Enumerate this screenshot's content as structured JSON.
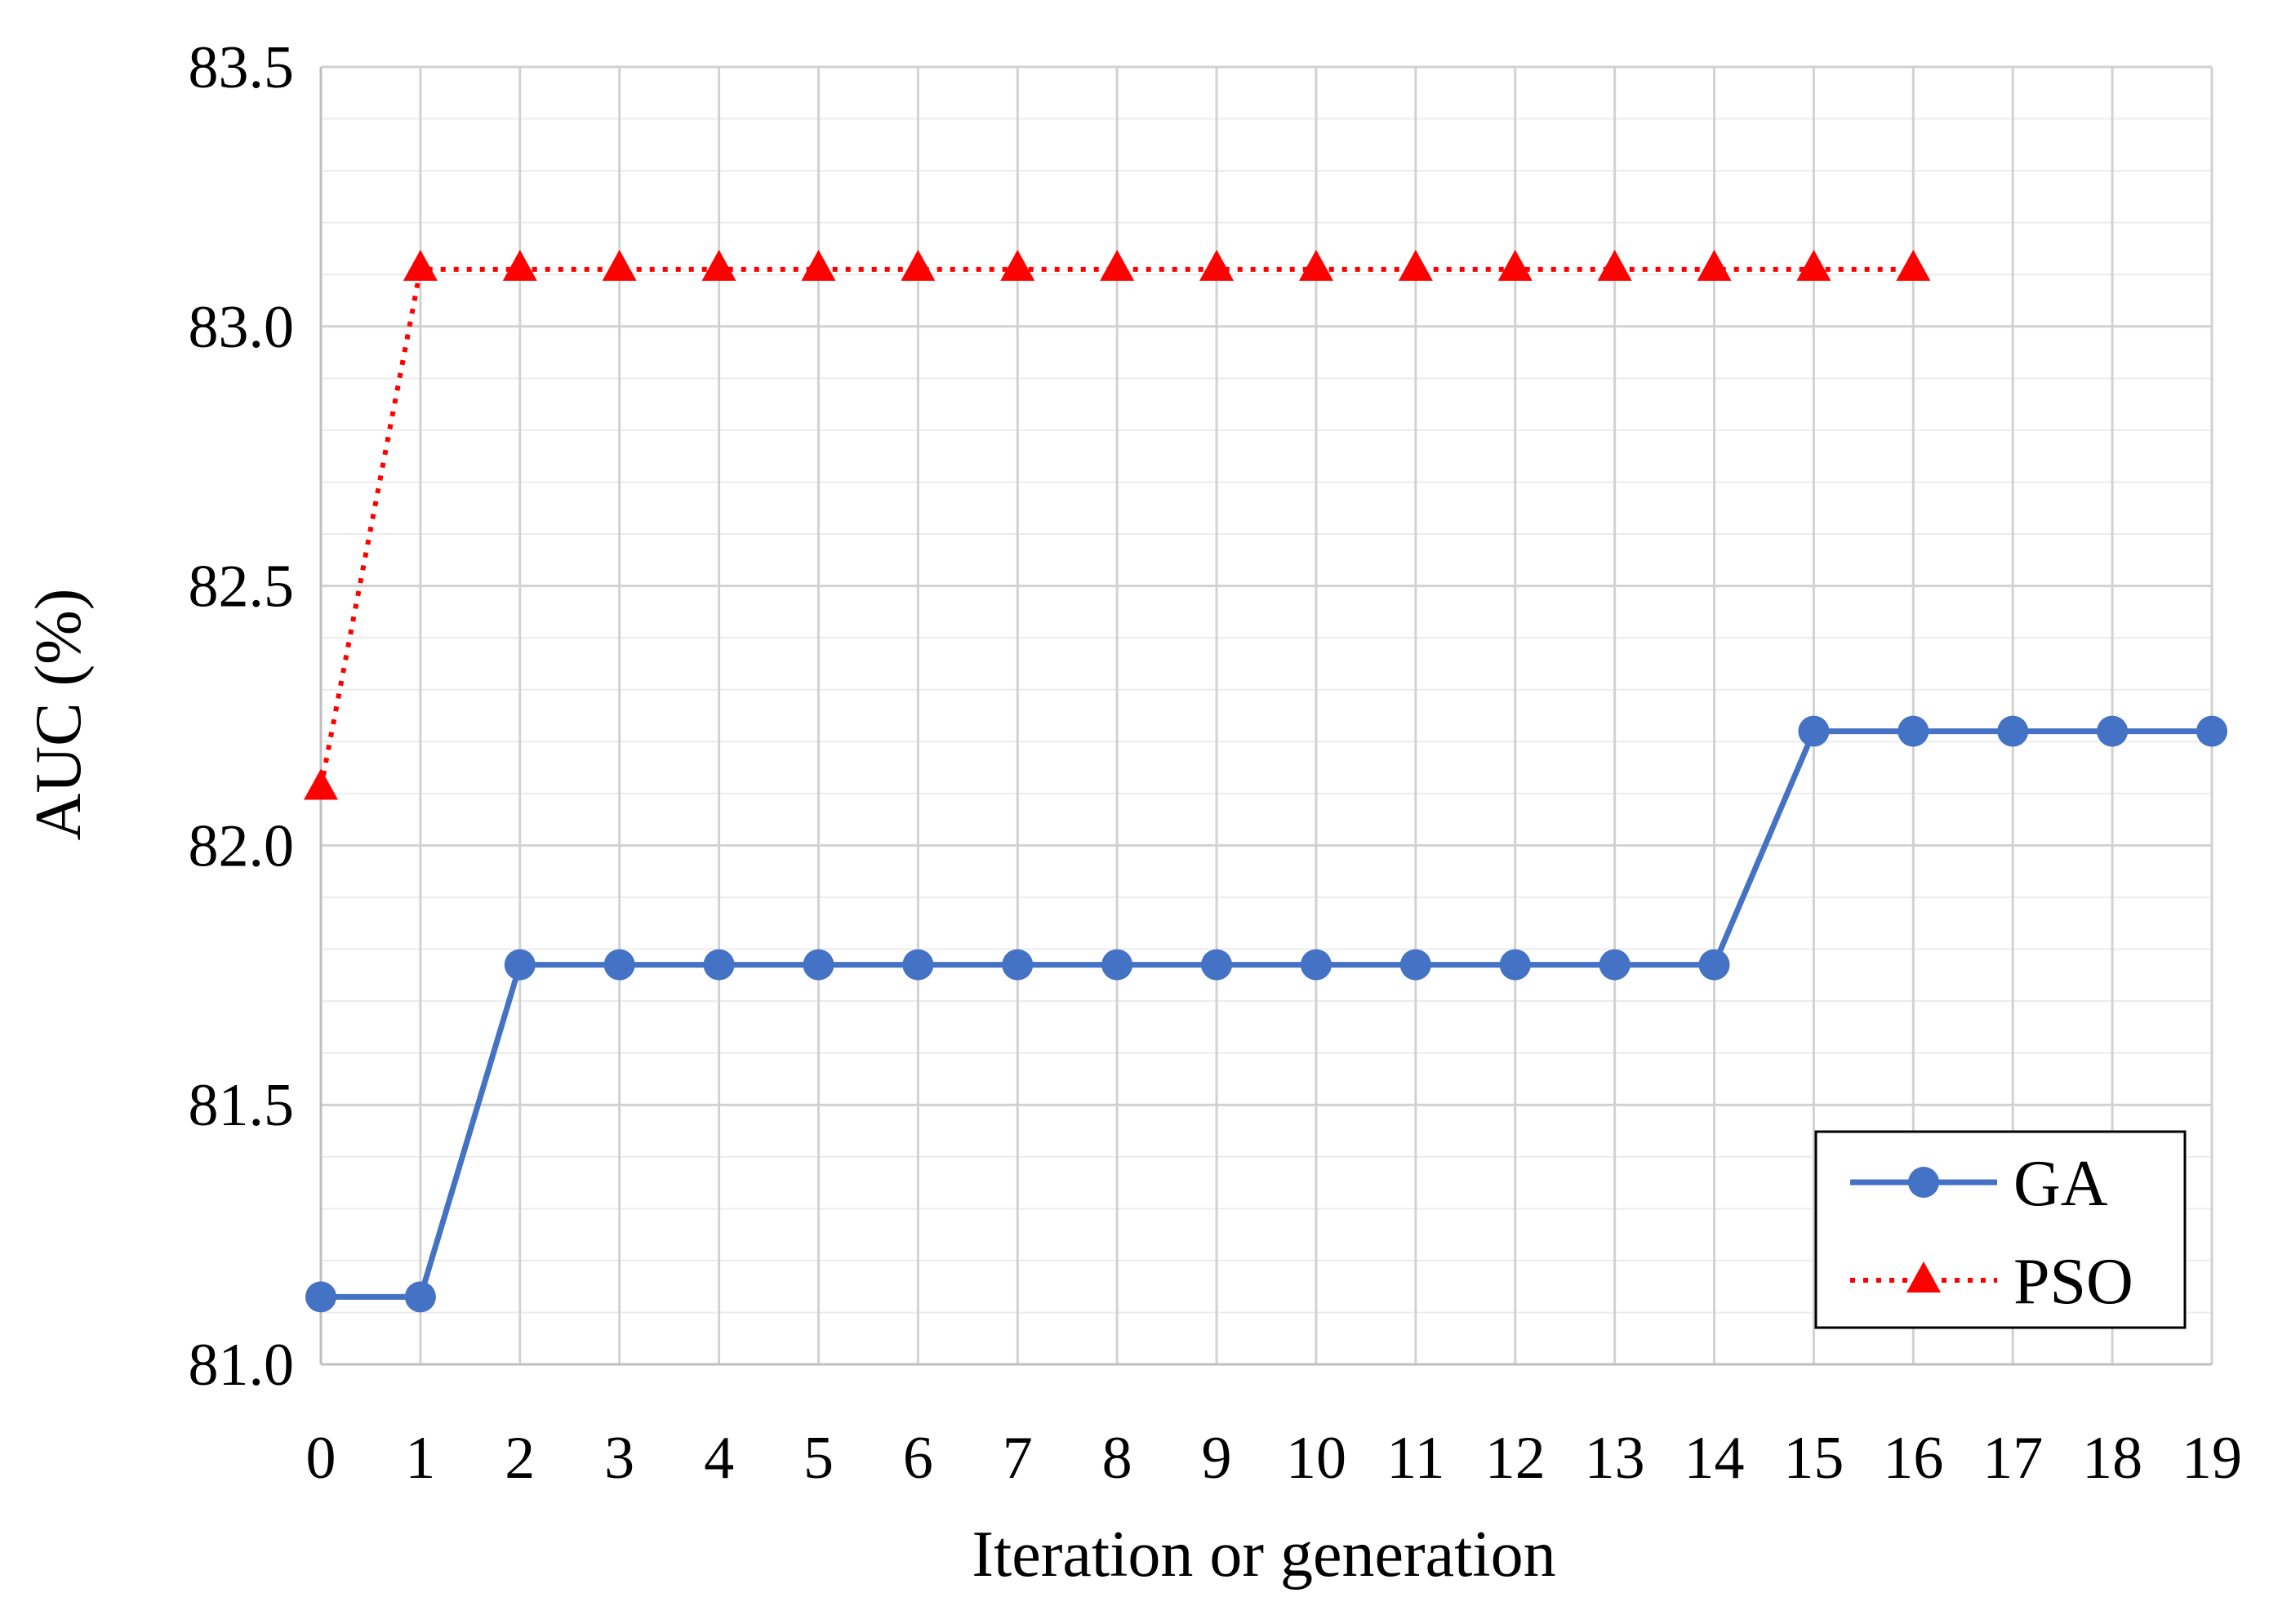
{
  "chart_data": {
    "type": "line",
    "title": "",
    "xlabel": "Iteration or generation",
    "ylabel": "AUC (%)",
    "x": [
      0,
      1,
      2,
      3,
      4,
      5,
      6,
      7,
      8,
      9,
      10,
      11,
      12,
      13,
      14,
      15,
      16,
      17,
      18,
      19
    ],
    "x_tick_labels": [
      "0",
      "1",
      "2",
      "3",
      "4",
      "5",
      "6",
      "7",
      "8",
      "9",
      "10",
      "11",
      "12",
      "13",
      "14",
      "15",
      "16",
      "17",
      "18",
      "19"
    ],
    "ylim": [
      81.0,
      83.5
    ],
    "y_ticks": [
      81.0,
      81.5,
      82.0,
      82.5,
      83.0,
      83.5
    ],
    "y_tick_labels": [
      "81.0",
      "81.5",
      "82.0",
      "82.5",
      "83.0",
      "83.5"
    ],
    "grid": true,
    "legend_position": "bottom-right",
    "series": [
      {
        "name": "GA",
        "color": "#4472C4",
        "line_style": "solid",
        "marker": "circle",
        "x": [
          0,
          1,
          2,
          3,
          4,
          5,
          6,
          7,
          8,
          9,
          10,
          11,
          12,
          13,
          14,
          15,
          16,
          17,
          18,
          19
        ],
        "values": [
          81.13,
          81.13,
          81.77,
          81.77,
          81.77,
          81.77,
          81.77,
          81.77,
          81.77,
          81.77,
          81.77,
          81.77,
          81.77,
          81.77,
          81.77,
          82.22,
          82.22,
          82.22,
          82.22,
          82.22
        ]
      },
      {
        "name": "PSO",
        "color": "#FF0000",
        "line_style": "dotted",
        "marker": "triangle",
        "x": [
          0,
          1,
          2,
          3,
          4,
          5,
          6,
          7,
          8,
          9,
          10,
          11,
          12,
          13,
          14,
          15,
          16
        ],
        "values": [
          82.11,
          83.11,
          83.11,
          83.11,
          83.11,
          83.11,
          83.11,
          83.11,
          83.11,
          83.11,
          83.11,
          83.11,
          83.11,
          83.11,
          83.11,
          83.11,
          83.11
        ]
      }
    ]
  }
}
